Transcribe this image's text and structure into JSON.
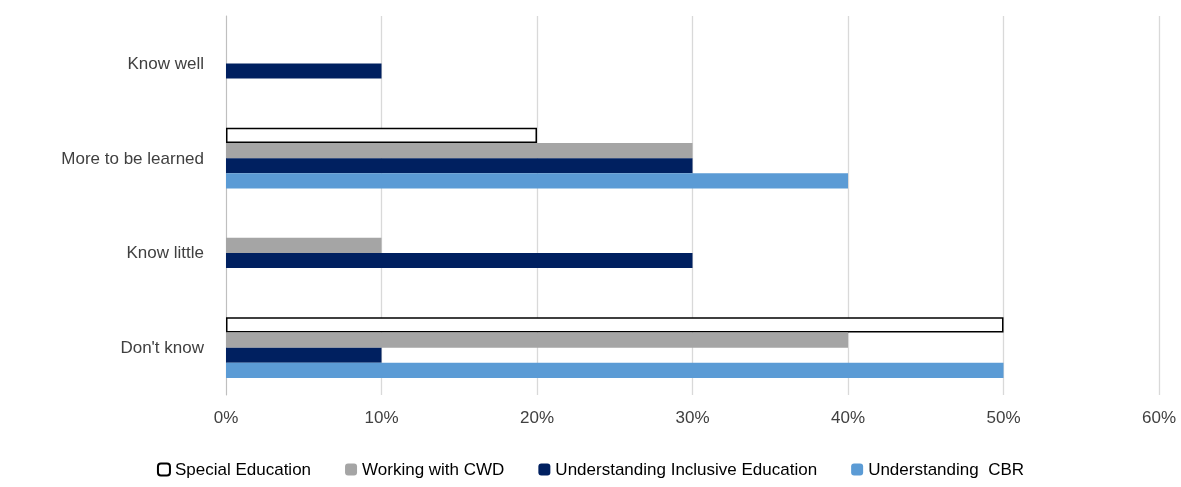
{
  "chart_data": {
    "type": "bar",
    "orientation": "horizontal",
    "categories": [
      "Know well",
      "More to be learned",
      "Know little",
      "Don't know"
    ],
    "series": [
      {
        "name": "Special Education",
        "color": "#ffffff",
        "values": [
          0,
          20,
          0,
          50
        ]
      },
      {
        "name": "Working with CWD",
        "color": "#a5a5a5",
        "values": [
          0,
          30,
          10,
          40
        ]
      },
      {
        "name": "Understanding Inclusive Education",
        "color": "#002060",
        "values": [
          10,
          30,
          30,
          10
        ]
      },
      {
        "name": "Understanding  CBR",
        "color": "#5b9bd5",
        "values": [
          0,
          40,
          0,
          50
        ]
      }
    ],
    "xlim": [
      0,
      60
    ],
    "xticks": [
      {
        "value": 0,
        "label": "0%"
      },
      {
        "value": 10,
        "label": "10%"
      },
      {
        "value": 20,
        "label": "20%"
      },
      {
        "value": 30,
        "label": "30%"
      },
      {
        "value": 40,
        "label": "40%"
      },
      {
        "value": 50,
        "label": "50%"
      },
      {
        "value": 60,
        "label": "60%"
      }
    ],
    "grid": "x",
    "legend": "bottom"
  }
}
